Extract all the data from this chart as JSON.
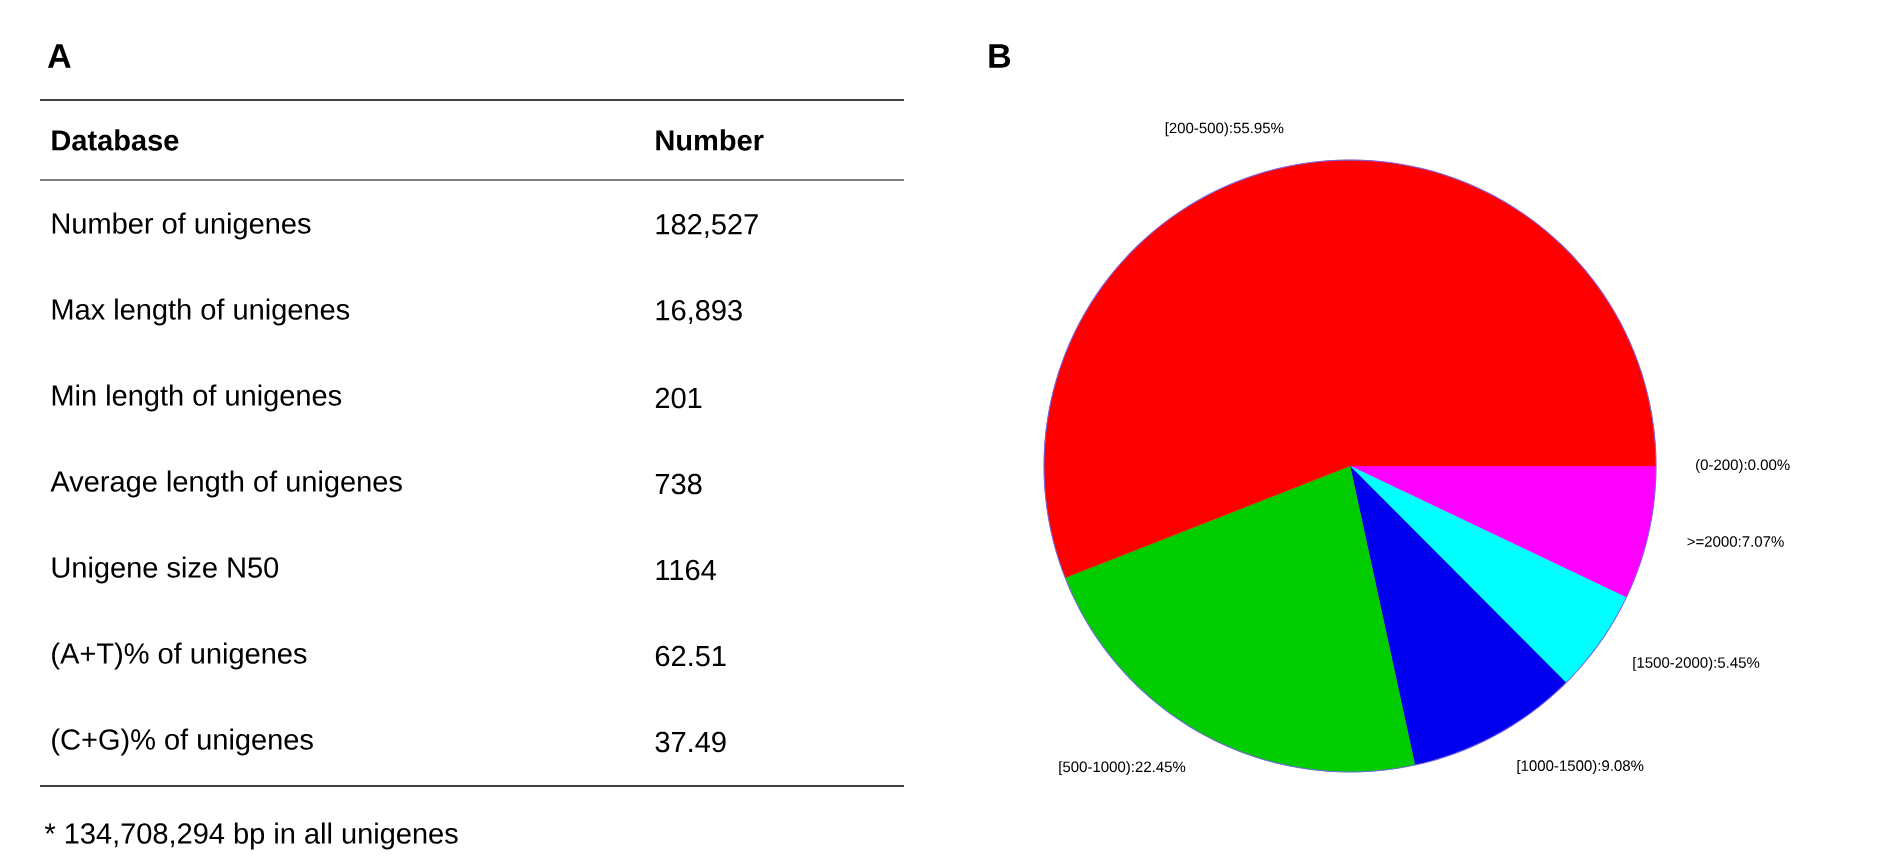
{
  "chart_data": [
    {
      "type": "other",
      "title": "A",
      "annotations": [
        "Database",
        "Number",
        "Number of unigenes",
        "182,527",
        "Max length of unigenes",
        "16,893",
        "Min length of unigenes",
        "201",
        "Average length of unigenes",
        "738",
        "Unigene size N50",
        "1164",
        "(A+T)% of unigenes",
        "62.51",
        "(C+G)% of unigenes",
        "37.49",
        "* 134,708,294 bp in all unigenes"
      ]
    },
    {
      "type": "pie",
      "title": "B",
      "categories": [
        "(0-200):0.00%",
        ">=2000:7.07%",
        "[1500-2000):5.45%",
        "[1000-1500):9.08%",
        "[500-1000):22.45%",
        "[200-500):55.95%"
      ],
      "values": [
        0.0,
        7.07,
        5.45,
        9.08,
        22.45,
        55.95
      ],
      "colors": [
        "#ffffff",
        "#ff00ff",
        "#00ffff",
        "#0000ee",
        "#00cc00",
        "#ff0000"
      ]
    }
  ]
}
